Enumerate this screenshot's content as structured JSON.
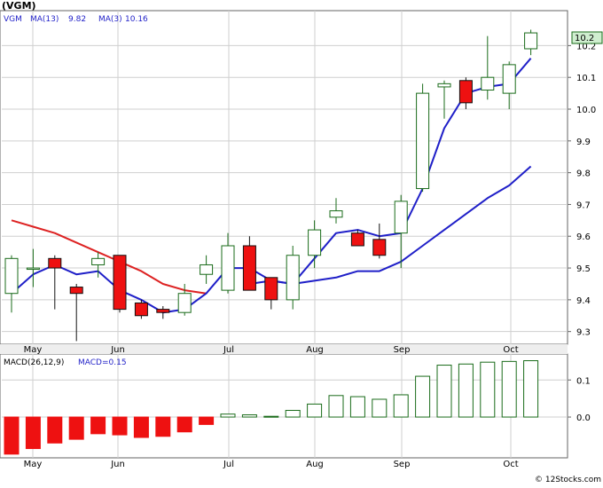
{
  "chart_data": [
    {
      "type": "candlestick",
      "title": "(VGM)",
      "legend": {
        "symbol": "VGM",
        "ma13_label": "MA(13)",
        "ma13_value": "9.82",
        "ma3_label": "MA(3)",
        "ma3_value": "10.16",
        "placement": "top-left"
      },
      "last_price": "10.2",
      "ylim": [
        9.26,
        10.31
      ],
      "y_ticks": [
        "9.3",
        "9.4",
        "9.5",
        "9.6",
        "9.7",
        "9.8",
        "9.9",
        "10.0",
        "10.1",
        "10.2"
      ],
      "x_ticks": [
        "May",
        "Jun",
        "Jul",
        "Aug",
        "Sep",
        "Oct"
      ],
      "grid": true,
      "candles": [
        {
          "o": 9.42,
          "h": 9.54,
          "l": 9.36,
          "c": 9.53,
          "dir": "up"
        },
        {
          "o": 9.5,
          "h": 9.56,
          "l": 9.44,
          "c": 9.5,
          "dir": "up"
        },
        {
          "o": 9.53,
          "h": 9.54,
          "l": 9.37,
          "c": 9.5,
          "dir": "down"
        },
        {
          "o": 9.44,
          "h": 9.45,
          "l": 9.27,
          "c": 9.42,
          "dir": "down"
        },
        {
          "o": 9.51,
          "h": 9.55,
          "l": 9.47,
          "c": 9.53,
          "dir": "up"
        },
        {
          "o": 9.54,
          "h": 9.54,
          "l": 9.36,
          "c": 9.37,
          "dir": "down"
        },
        {
          "o": 9.39,
          "h": 9.4,
          "l": 9.34,
          "c": 9.35,
          "dir": "down"
        },
        {
          "o": 9.37,
          "h": 9.38,
          "l": 9.34,
          "c": 9.36,
          "dir": "down"
        },
        {
          "o": 9.36,
          "h": 9.45,
          "l": 9.35,
          "c": 9.42,
          "dir": "up"
        },
        {
          "o": 9.48,
          "h": 9.54,
          "l": 9.45,
          "c": 9.51,
          "dir": "up"
        },
        {
          "o": 9.43,
          "h": 9.61,
          "l": 9.42,
          "c": 9.57,
          "dir": "up"
        },
        {
          "o": 9.57,
          "h": 9.6,
          "l": 9.43,
          "c": 9.43,
          "dir": "down"
        },
        {
          "o": 9.47,
          "h": 9.47,
          "l": 9.37,
          "c": 9.4,
          "dir": "down"
        },
        {
          "o": 9.4,
          "h": 9.57,
          "l": 9.37,
          "c": 9.54,
          "dir": "up"
        },
        {
          "o": 9.54,
          "h": 9.65,
          "l": 9.5,
          "c": 9.62,
          "dir": "up"
        },
        {
          "o": 9.66,
          "h": 9.72,
          "l": 9.64,
          "c": 9.68,
          "dir": "up"
        },
        {
          "o": 9.61,
          "h": 9.62,
          "l": 9.57,
          "c": 9.57,
          "dir": "down"
        },
        {
          "o": 9.59,
          "h": 9.64,
          "l": 9.53,
          "c": 9.54,
          "dir": "down"
        },
        {
          "o": 9.61,
          "h": 9.73,
          "l": 9.5,
          "c": 9.71,
          "dir": "up"
        },
        {
          "o": 9.75,
          "h": 10.08,
          "l": 9.74,
          "c": 10.05,
          "dir": "up"
        },
        {
          "o": 10.07,
          "h": 10.09,
          "l": 9.97,
          "c": 10.08,
          "dir": "up"
        },
        {
          "o": 10.09,
          "h": 10.1,
          "l": 10.0,
          "c": 10.02,
          "dir": "down"
        },
        {
          "o": 10.06,
          "h": 10.23,
          "l": 10.03,
          "c": 10.1,
          "dir": "up"
        },
        {
          "o": 10.05,
          "h": 10.15,
          "l": 10.0,
          "c": 10.14,
          "dir": "up"
        },
        {
          "o": 10.19,
          "h": 10.25,
          "l": 10.17,
          "c": 10.24,
          "dir": "up"
        }
      ],
      "ma13_partial": [
        9.65,
        9.63,
        9.61,
        9.58,
        9.55,
        9.52,
        9.49,
        9.45,
        9.43,
        9.42
      ],
      "ma3_full": [
        9.42,
        9.48,
        9.51,
        9.48,
        9.49,
        9.43,
        9.4,
        9.36,
        9.37,
        9.42,
        9.5,
        9.5,
        9.46,
        9.45,
        9.53,
        9.61,
        9.62,
        9.6,
        9.61,
        9.75,
        9.94,
        10.05,
        10.07,
        10.08,
        10.16
      ],
      "ma13_full": [
        9.45,
        9.46,
        9.45,
        9.46,
        9.47,
        9.49,
        9.49,
        9.52,
        9.57,
        9.62,
        9.67,
        9.72,
        9.76,
        9.82
      ]
    },
    {
      "type": "bar",
      "label": "MACD(26,12,9)",
      "value_label": "MACD=0.15",
      "ylim": [
        -0.11,
        0.17
      ],
      "y_ticks": [
        "0.1",
        "0.0"
      ],
      "x_ticks": [
        "May",
        "Jun",
        "Jul",
        "Aug",
        "Sep",
        "Oct"
      ],
      "values": [
        -0.1,
        -0.085,
        -0.07,
        -0.06,
        -0.045,
        -0.048,
        -0.055,
        -0.052,
        -0.04,
        -0.02,
        0.008,
        0.006,
        0.002,
        0.018,
        0.035,
        0.058,
        0.055,
        0.048,
        0.06,
        0.11,
        0.14,
        0.143,
        0.148,
        0.15,
        0.152
      ]
    }
  ],
  "colors": {
    "up_fill": "#ffffff",
    "up_stroke": "#1a6b1a",
    "down_fill": "#ee1111",
    "down_stroke": "#111111",
    "ma_red": "#dd2222",
    "ma_blue": "#1f1fc8",
    "grid": "#cfcfcf",
    "macd_pos_stroke": "#1a6b1a",
    "macd_neg_fill": "#ee1111",
    "legend_text": "#1f1fc8",
    "last_price_bg": "#cfeecf"
  },
  "footer": {
    "credit": "© 12Stocks.com"
  }
}
